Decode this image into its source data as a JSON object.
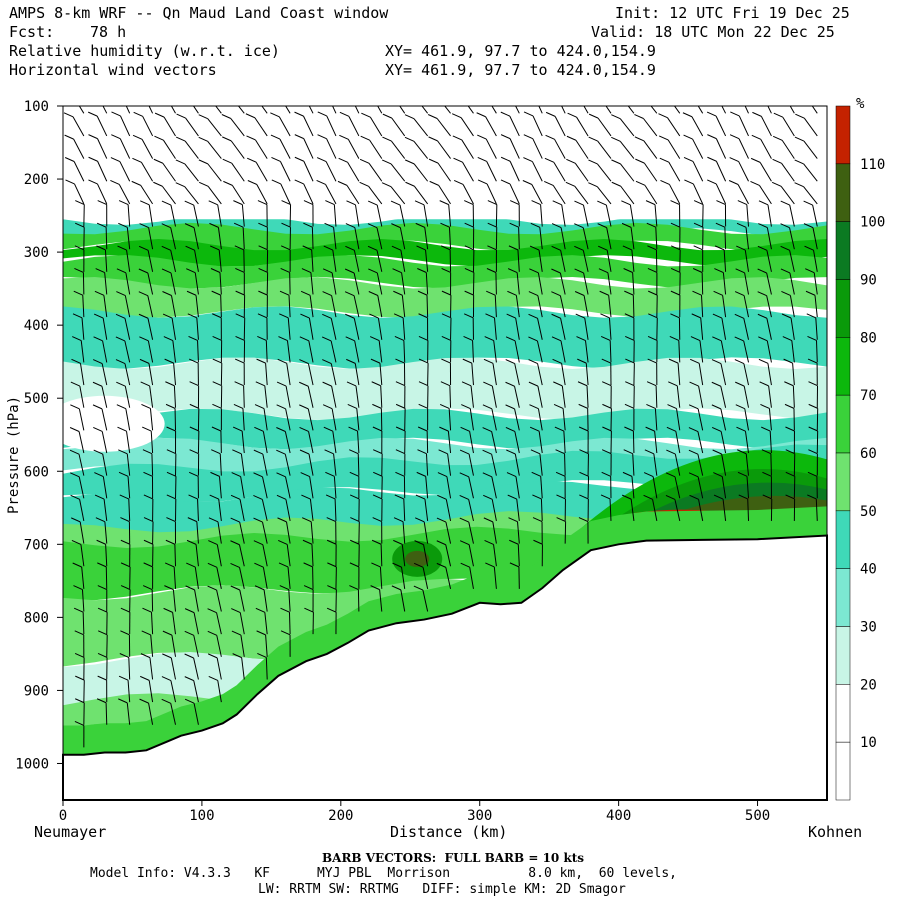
{
  "header": {
    "title": "AMPS 8-km WRF -- Qn Maud Land Coast window",
    "fcst_label": "Fcst:",
    "fcst_value": "78 h",
    "init": "Init: 12 UTC Fri 19 Dec 25",
    "valid": "Valid: 18 UTC Mon 22 Dec 25",
    "field1": "Relative humidity (w.r.t. ice)",
    "field2": "Horizontal wind vectors",
    "xy1": "XY= 461.9, 97.7 to 424.0,154.9",
    "xy2": "XY= 461.9, 97.7 to 424.0,154.9"
  },
  "footer": {
    "barb_note": "BARB VECTORS:  FULL BARB = 10 kts",
    "model_info_1": "Model Info: V4.3.3   KF      MYJ PBL  Morrison          8.0 km,  60 levels,",
    "model_info_2": "LW: RRTM SW: RRTMG   DIFF: simple KM: 2D Smagor"
  },
  "colors": {
    "c20_30": "#c8f5e6",
    "c30_40": "#7ce8d2",
    "c40_50": "#3fd9b8",
    "c50_60": "#6fe26f",
    "c60_70": "#3ad23a",
    "c70_80": "#0cb80c",
    "c80_90": "#0a9a0a",
    "c90_100": "#0b7a22",
    "c100_110": "#3e6011",
    "c110plus": "#c42200"
  },
  "chart_data": {
    "type": "cross-section",
    "title": "Relative humidity (w.r.t. ice) and horizontal wind vectors",
    "xlabel": "Distance (km)",
    "ylabel": "Pressure (hPa)",
    "xlim": [
      0,
      550
    ],
    "ylim": [
      1050,
      100
    ],
    "x_ticks": [
      0,
      100,
      200,
      300,
      400,
      500
    ],
    "y_ticks": [
      100,
      200,
      300,
      400,
      500,
      600,
      700,
      800,
      900,
      1000
    ],
    "x_start_label": "Neumayer",
    "x_end_label": "Kohnen",
    "colorbar_unit": "%",
    "colorbar_levels": [
      10,
      20,
      30,
      40,
      50,
      60,
      70,
      80,
      90,
      100,
      110
    ],
    "terrain_pressure": [
      [
        0,
        988
      ],
      [
        15,
        988
      ],
      [
        30,
        985
      ],
      [
        45,
        985
      ],
      [
        60,
        982
      ],
      [
        75,
        970
      ],
      [
        85,
        962
      ],
      [
        100,
        955
      ],
      [
        115,
        945
      ],
      [
        125,
        933
      ],
      [
        140,
        905
      ],
      [
        155,
        880
      ],
      [
        175,
        860
      ],
      [
        190,
        850
      ],
      [
        205,
        835
      ],
      [
        220,
        818
      ],
      [
        240,
        808
      ],
      [
        260,
        803
      ],
      [
        280,
        795
      ],
      [
        300,
        780
      ],
      [
        315,
        782
      ],
      [
        330,
        780
      ],
      [
        345,
        760
      ],
      [
        360,
        735
      ],
      [
        380,
        708
      ],
      [
        400,
        700
      ],
      [
        420,
        695
      ],
      [
        460,
        694
      ],
      [
        500,
        693
      ],
      [
        550,
        688
      ]
    ],
    "rh_layers_pct": [
      {
        "p_top": 100,
        "p_bottom": 255,
        "rh": "<20"
      },
      {
        "p_top": 255,
        "p_bottom": 275,
        "rh": "40-60"
      },
      {
        "p_top": 275,
        "p_bottom": 340,
        "rh": "60-80"
      },
      {
        "p_top": 340,
        "p_bottom": 380,
        "rh": "50-60"
      },
      {
        "p_top": 380,
        "p_bottom": 450,
        "rh": "40-50"
      },
      {
        "p_top": 450,
        "p_bottom": 520,
        "rh": "20-30"
      },
      {
        "p_top": 520,
        "p_bottom": 560,
        "rh": "40-50"
      },
      {
        "p_top": 560,
        "p_bottom": 630,
        "rh": "30-50"
      },
      {
        "p_top": 630,
        "p_bottom": 700,
        "rh": "40-60"
      },
      {
        "p_top": 700,
        "p_bottom": 760,
        "rh": "60-70"
      },
      {
        "p_top": 760,
        "p_bottom": 860,
        "rh": "50-60"
      },
      {
        "p_top": 860,
        "p_bottom": 920,
        "rh": "20-40"
      },
      {
        "p_top": 920,
        "p_bottom": 990,
        "rh": "60-90"
      }
    ],
    "moist_layer_east": {
      "x_range": [
        360,
        550
      ],
      "p_range": [
        610,
        690
      ],
      "rh": "90->110"
    },
    "wind_barbs": "westerly-component barbs at ~33 columns and ~30 levels; mostly 10-20 kts aloft, stronger near surface"
  }
}
